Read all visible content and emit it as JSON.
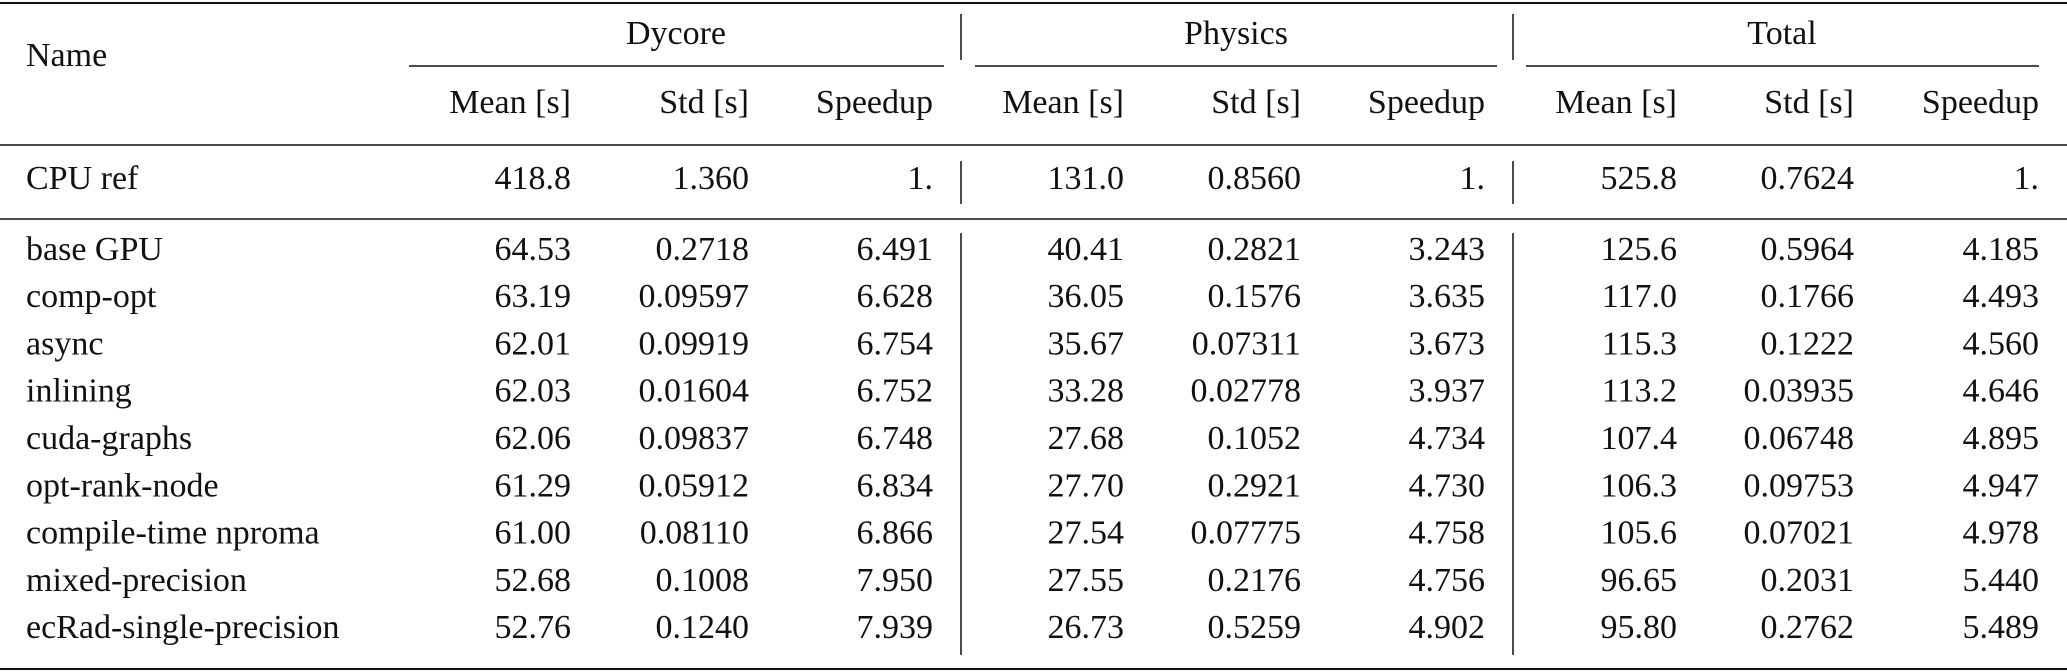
{
  "table": {
    "name_header": "Name",
    "groups": [
      "Dycore",
      "Physics",
      "Total"
    ],
    "columns": [
      "Mean [s]",
      "Std [s]",
      "Speedup",
      "Mean [s]",
      "Std [s]",
      "Speedup",
      "Mean [s]",
      "Std [s]",
      "Speedup"
    ],
    "rows": [
      [
        "CPU ref",
        "418.8",
        "1.360",
        "1.",
        "131.0",
        "0.8560",
        "1.",
        "525.8",
        "0.7624",
        "1."
      ],
      [
        "base GPU",
        "64.53",
        "0.2718",
        "6.491",
        "40.41",
        "0.2821",
        "3.243",
        "125.6",
        "0.5964",
        "4.185"
      ],
      [
        "comp-opt",
        "63.19",
        "0.09597",
        "6.628",
        "36.05",
        "0.1576",
        "3.635",
        "117.0",
        "0.1766",
        "4.493"
      ],
      [
        "async",
        "62.01",
        "0.09919",
        "6.754",
        "35.67",
        "0.07311",
        "3.673",
        "115.3",
        "0.1222",
        "4.560"
      ],
      [
        "inlining",
        "62.03",
        "0.01604",
        "6.752",
        "33.28",
        "0.02778",
        "3.937",
        "113.2",
        "0.03935",
        "4.646"
      ],
      [
        "cuda-graphs",
        "62.06",
        "0.09837",
        "6.748",
        "27.68",
        "0.1052",
        "4.734",
        "107.4",
        "0.06748",
        "4.895"
      ],
      [
        "opt-rank-node",
        "61.29",
        "0.05912",
        "6.834",
        "27.70",
        "0.2921",
        "4.730",
        "106.3",
        "0.09753",
        "4.947"
      ],
      [
        "compile-time nproma",
        "61.00",
        "0.08110",
        "6.866",
        "27.54",
        "0.07775",
        "4.758",
        "105.6",
        "0.07021",
        "4.978"
      ],
      [
        "mixed-precision",
        "52.68",
        "0.1008",
        "7.950",
        "27.55",
        "0.2176",
        "4.756",
        "96.65",
        "0.2031",
        "5.440"
      ],
      [
        "ecRad-single-precision",
        "52.76",
        "0.1240",
        "7.939",
        "26.73",
        "0.5259",
        "4.902",
        "95.80",
        "0.2762",
        "5.489"
      ]
    ]
  }
}
